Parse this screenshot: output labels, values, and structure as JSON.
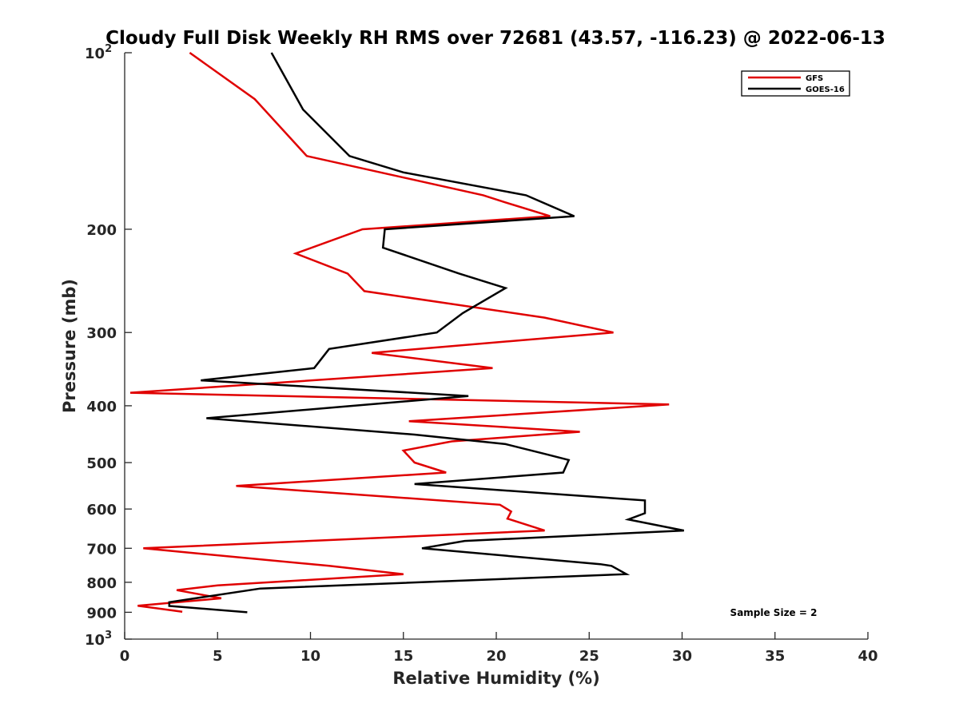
{
  "chart_data": {
    "type": "line",
    "title": "Cloudy Full Disk Weekly RH RMS over 72681 (43.57, -116.23) @ 2022-06-13",
    "xlabel": "Relative Humidity (%)",
    "ylabel": "Pressure (mb)",
    "xlim": [
      0,
      40
    ],
    "ylim": [
      100,
      1000
    ],
    "y_scale": "log",
    "y_reversed": true,
    "x_ticks": [
      0,
      5,
      10,
      15,
      20,
      25,
      30,
      35,
      40
    ],
    "x_tick_labels": [
      "0",
      "5",
      "10",
      "15",
      "20",
      "25",
      "30",
      "35",
      "40"
    ],
    "y_ticks": [
      100,
      200,
      300,
      400,
      500,
      600,
      700,
      800,
      900,
      1000
    ],
    "y_tick_labels": [
      {
        "base": "10",
        "exp": "2"
      },
      {
        "base": "200",
        "exp": ""
      },
      {
        "base": "300",
        "exp": ""
      },
      {
        "base": "400",
        "exp": ""
      },
      {
        "base": "500",
        "exp": ""
      },
      {
        "base": "600",
        "exp": ""
      },
      {
        "base": "700",
        "exp": ""
      },
      {
        "base": "800",
        "exp": ""
      },
      {
        "base": "900",
        "exp": ""
      },
      {
        "base": "10",
        "exp": "3"
      }
    ],
    "grid": false,
    "legend_position": "top-right",
    "annotation": "Sample Size = 2",
    "series": [
      {
        "name": "GFS",
        "color": "#e00000",
        "points": [
          [
            3.5,
            100
          ],
          [
            7.0,
            120
          ],
          [
            9.8,
            150
          ],
          [
            19.3,
            175
          ],
          [
            20.5,
            180
          ],
          [
            22.9,
            190
          ],
          [
            12.8,
            200
          ],
          [
            9.2,
            220
          ],
          [
            12.0,
            238
          ],
          [
            12.9,
            255
          ],
          [
            22.6,
            283
          ],
          [
            26.3,
            300
          ],
          [
            13.3,
            325
          ],
          [
            19.8,
            345
          ],
          [
            0.3,
            380
          ],
          [
            29.3,
            398
          ],
          [
            15.3,
            425
          ],
          [
            24.5,
            443
          ],
          [
            17.6,
            460
          ],
          [
            15.0,
            477
          ],
          [
            15.6,
            500
          ],
          [
            17.3,
            520
          ],
          [
            6.0,
            548
          ],
          [
            20.2,
            590
          ],
          [
            20.8,
            606
          ],
          [
            20.6,
            623
          ],
          [
            22.6,
            653
          ],
          [
            1.0,
            700
          ],
          [
            11.0,
            750
          ],
          [
            15.0,
            775
          ],
          [
            5.0,
            810
          ],
          [
            2.8,
            825
          ],
          [
            5.2,
            852
          ],
          [
            0.7,
            877
          ],
          [
            3.1,
            898
          ]
        ]
      },
      {
        "name": "GOES-16",
        "color": "#000000",
        "points": [
          [
            7.9,
            100
          ],
          [
            9.6,
            125
          ],
          [
            12.1,
            150
          ],
          [
            15.0,
            160
          ],
          [
            21.6,
            175
          ],
          [
            24.2,
            190
          ],
          [
            14.0,
            200
          ],
          [
            13.9,
            215
          ],
          [
            18.0,
            238
          ],
          [
            20.5,
            252
          ],
          [
            18.2,
            278
          ],
          [
            16.8,
            300
          ],
          [
            11.0,
            320
          ],
          [
            10.2,
            345
          ],
          [
            4.1,
            362
          ],
          [
            18.5,
            385
          ],
          [
            4.4,
            420
          ],
          [
            15.6,
            448
          ],
          [
            20.5,
            465
          ],
          [
            22.7,
            484
          ],
          [
            23.9,
            495
          ],
          [
            23.6,
            520
          ],
          [
            15.6,
            544
          ],
          [
            28.0,
            580
          ],
          [
            28.0,
            610
          ],
          [
            27.1,
            625
          ],
          [
            30.1,
            653
          ],
          [
            18.3,
            680
          ],
          [
            16.0,
            700
          ],
          [
            25.6,
            745
          ],
          [
            26.2,
            750
          ],
          [
            27.0,
            775
          ],
          [
            7.3,
            820
          ],
          [
            2.4,
            865
          ],
          [
            2.4,
            878
          ],
          [
            6.6,
            900
          ]
        ]
      }
    ]
  }
}
